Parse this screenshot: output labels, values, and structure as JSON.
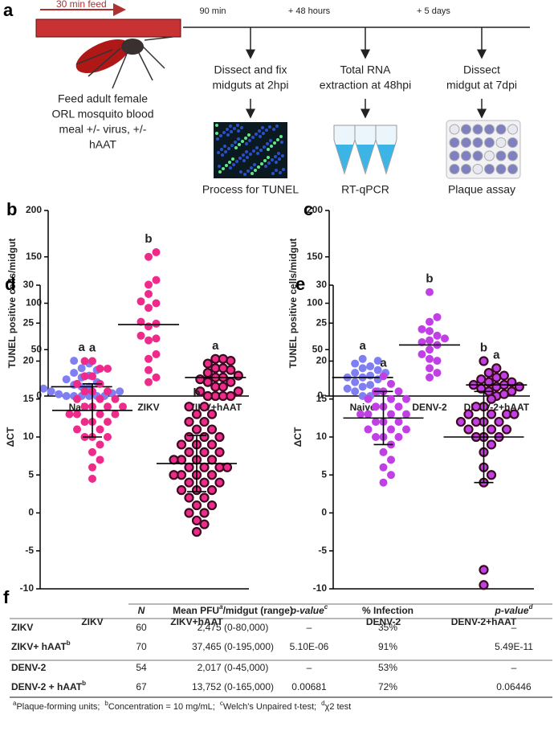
{
  "schematic": {
    "panel": "a",
    "feed_label": "30 min feed",
    "feed_text": [
      "Feed adult female",
      "ORL mosquito blood",
      "meal +/- virus, +/-",
      "hAAT"
    ],
    "steps": [
      {
        "time": "90 min",
        "text": [
          "Dissect and fix",
          "midguts at 2hpi"
        ],
        "assay": "Process for TUNEL"
      },
      {
        "time": "+ 48 hours",
        "text": [
          "Total RNA",
          "extraction at 48hpi"
        ],
        "assay": "RT-qPCR"
      },
      {
        "time": "+ 5 days",
        "text": [
          "Dissect",
          "midgut at 7dpi"
        ],
        "assay": "Plaque assay"
      }
    ]
  },
  "chart_data": [
    {
      "type": "dotplot",
      "panel": "b",
      "ylabel": "TUNEL positive cells/midgut",
      "ylim": [
        0,
        200
      ],
      "yticks": [
        0,
        50,
        100,
        150,
        200
      ],
      "groups": [
        {
          "name": "Naive",
          "color": "#7f7ff2",
          "letter": "a",
          "center": 10,
          "values": [
            0,
            0,
            0,
            0,
            0,
            0,
            2,
            3,
            5,
            5,
            8,
            10,
            10,
            12,
            15,
            18,
            20,
            22,
            25,
            28,
            30,
            35,
            38
          ]
        },
        {
          "name": "ZIKV",
          "color": "#ee2a8a",
          "letter": "b",
          "center": 77,
          "values": [
            15,
            20,
            28,
            40,
            45,
            60,
            62,
            65,
            75,
            78,
            80,
            95,
            100,
            102,
            110,
            120,
            125,
            150,
            155
          ]
        },
        {
          "name": "ZIKV+hAAT",
          "color": "#ee2a8a",
          "edge": "#3a0a1e",
          "letter": "a",
          "center": 20,
          "values": [
            0,
            0,
            0,
            0,
            5,
            5,
            10,
            10,
            15,
            15,
            18,
            20,
            20,
            22,
            25,
            28,
            30,
            30,
            35,
            38,
            40,
            40
          ]
        }
      ]
    },
    {
      "type": "dotplot",
      "panel": "c",
      "ylabel": "TUNEL positive cells/midgut",
      "ylim": [
        0,
        200
      ],
      "yticks": [
        0,
        50,
        100,
        150,
        200
      ],
      "groups": [
        {
          "name": "Naive",
          "color": "#7f7ff2",
          "letter": "a",
          "center": 20,
          "values": [
            0,
            0,
            5,
            5,
            8,
            10,
            12,
            15,
            18,
            20,
            20,
            22,
            25,
            25,
            28,
            30,
            32,
            35,
            38,
            40
          ]
        },
        {
          "name": "DENV-2",
          "color": "#c040e6",
          "letter": "b",
          "center": 55,
          "values": [
            20,
            25,
            30,
            38,
            40,
            45,
            50,
            55,
            58,
            60,
            62,
            65,
            70,
            72,
            80,
            85,
            112
          ]
        },
        {
          "name": "DENV-2+hAAT",
          "color": "#c040e6",
          "edge": "#3a0a1e",
          "letter": "a",
          "center": 12,
          "values": [
            0,
            2,
            5,
            5,
            8,
            10,
            10,
            12,
            12,
            15,
            15,
            18,
            20,
            22,
            25,
            30
          ]
        }
      ]
    },
    {
      "type": "dotplot",
      "panel": "d",
      "ylabel": "ΔCT",
      "ylim": [
        -10,
        30
      ],
      "yticks": [
        -10,
        -5,
        0,
        5,
        10,
        15,
        20,
        25,
        30
      ],
      "groups": [
        {
          "name": "ZIKV",
          "color": "#ee2a8a",
          "letter": "a",
          "center": 13.5,
          "sd": 3.5,
          "values": [
            4.5,
            6,
            7,
            8,
            9,
            10,
            10,
            10,
            11,
            11,
            12,
            12,
            12,
            13,
            13,
            13,
            13,
            14,
            14,
            14,
            14,
            15,
            15,
            15,
            16,
            16,
            16,
            17,
            17,
            18,
            18,
            19,
            19,
            20,
            20
          ]
        },
        {
          "name": "ZIKV+hAAT",
          "color": "#ee2a8a",
          "edge": "#3a0a1e",
          "letter": "b",
          "center": 6.5,
          "sd": 3.7,
          "values": [
            -2.5,
            -1.5,
            -1,
            0,
            0,
            1,
            1,
            2,
            2,
            3,
            3,
            3,
            4,
            4,
            4,
            5,
            5,
            5,
            5,
            6,
            6,
            6,
            6,
            7,
            7,
            7,
            7,
            8,
            8,
            8,
            9,
            9,
            9,
            10,
            10,
            10,
            11,
            11,
            12,
            12,
            13,
            13,
            14,
            14
          ]
        }
      ]
    },
    {
      "type": "dotplot",
      "panel": "e",
      "ylabel": "ΔCT",
      "ylim": [
        -10,
        30
      ],
      "yticks": [
        -10,
        -5,
        0,
        5,
        10,
        15,
        20,
        25,
        30
      ],
      "groups": [
        {
          "name": "DENV-2",
          "color": "#c040e6",
          "letter": "a",
          "center": 12.5,
          "sd": 3.5,
          "values": [
            4,
            5,
            6,
            7,
            8,
            9,
            10,
            10,
            10,
            11,
            11,
            11,
            12,
            12,
            12,
            13,
            13,
            13,
            13,
            14,
            14,
            14,
            15,
            15,
            15,
            16,
            16,
            16,
            17,
            18
          ]
        },
        {
          "name": "DENV-2+hAAT",
          "color": "#c040e6",
          "edge": "#3a0a1e",
          "letter": "b",
          "center": 10,
          "sd": 6,
          "values": [
            -9.5,
            -7.5,
            4,
            5,
            6,
            8,
            9,
            10,
            10,
            10,
            11,
            11,
            11,
            12,
            12,
            12,
            12,
            13,
            13,
            13,
            13,
            14,
            14,
            15,
            20
          ]
        }
      ]
    }
  ],
  "table": {
    "panel": "f",
    "header": [
      {
        "text": "N",
        "italic": true
      },
      {
        "text": "Mean PFU",
        "sup": "a",
        "after": "/midgut (range)"
      },
      {
        "text": "p-value",
        "sup": "c",
        "italic": true
      },
      {
        "text": "% Infection"
      },
      {
        "text": "p-value",
        "sup": "d",
        "italic": true
      }
    ],
    "rows": [
      {
        "name": {
          "text": "ZIKV"
        },
        "cells": [
          "60",
          "2,475 (0-80,000)",
          "–",
          "35%",
          "–"
        ]
      },
      {
        "name": {
          "text": "ZIKV+ hAAT",
          "sup": "b"
        },
        "cells": [
          "70",
          "37,465 (0-195,000)",
          "5.10E-06",
          "91%",
          "5.49E-11"
        ]
      },
      {
        "name": {
          "text": "DENV-2"
        },
        "cells": [
          "54",
          "2,017 (0-45,000)",
          "–",
          "53%",
          "–"
        ]
      },
      {
        "name": {
          "text": "DENV-2 + hAAT",
          "sup": "b"
        },
        "cells": [
          "67",
          "13,752 (0-165,000)",
          "0.00681",
          "72%",
          "0.06446"
        ]
      }
    ],
    "footnotes": [
      {
        "sup": "a",
        "text": "Plaque-forming units;"
      },
      {
        "sup": "b",
        "text": "Concentration = 10 mg/mL;"
      },
      {
        "sup": "c",
        "text": "Welch's Unpaired t-test;"
      },
      {
        "sup": "d",
        "text": "χ2 test"
      }
    ]
  }
}
